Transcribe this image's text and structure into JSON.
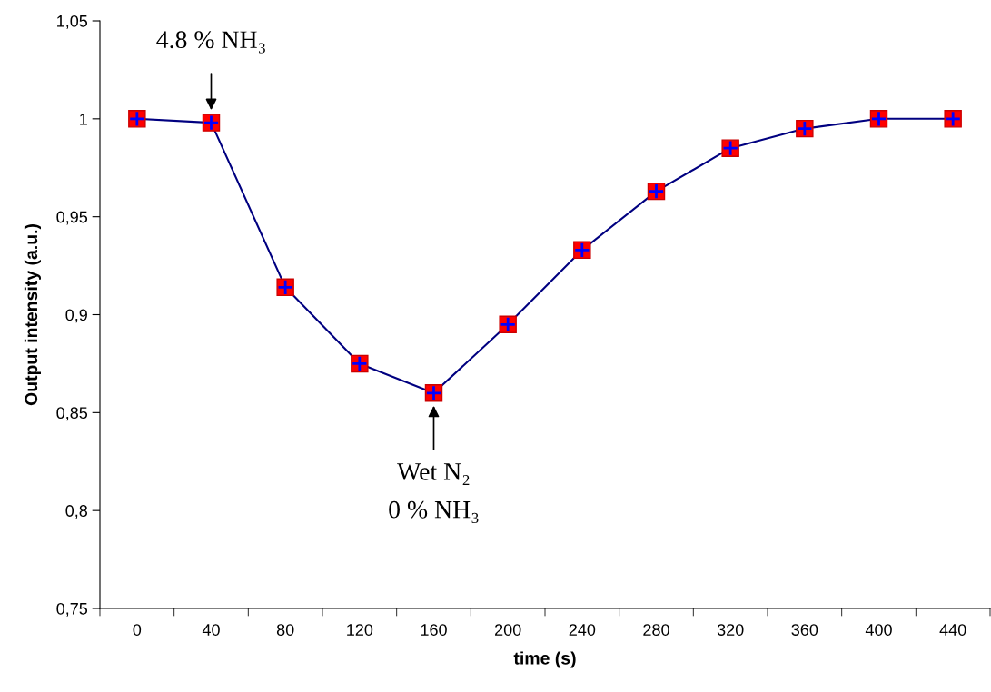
{
  "chart_data": {
    "type": "line",
    "xlabel": "time (s)",
    "ylabel": "Output intensity (a.u.)",
    "categories": [
      "0",
      "40",
      "80",
      "120",
      "160",
      "200",
      "240",
      "280",
      "320",
      "360",
      "400",
      "440"
    ],
    "series": [
      {
        "color": "#000080",
        "values": [
          1.0,
          0.998,
          0.914,
          0.875,
          0.86,
          0.895,
          0.933,
          0.963,
          0.985,
          0.995,
          1.0,
          1.0
        ]
      }
    ],
    "marker": "square",
    "line_style": "solid",
    "grid": false,
    "legend": false,
    "ylim": [
      0.75,
      1.05
    ],
    "yticks": [
      {
        "value": 0.75,
        "label": "0,75"
      },
      {
        "value": 0.8,
        "label": "0,8"
      },
      {
        "value": 0.85,
        "label": "0,85"
      },
      {
        "value": 0.9,
        "label": "0,9"
      },
      {
        "value": 0.95,
        "label": "0,95"
      },
      {
        "value": 1.0,
        "label": "1"
      },
      {
        "value": 1.05,
        "label": "1,05"
      }
    ],
    "annotations": [
      {
        "text": "4.8 % NH₃",
        "x": "40",
        "y": 0.998
      },
      {
        "text": "Wet N₂",
        "x": "160",
        "y": 0.86
      },
      "0 % NH₃"
    ]
  }
}
